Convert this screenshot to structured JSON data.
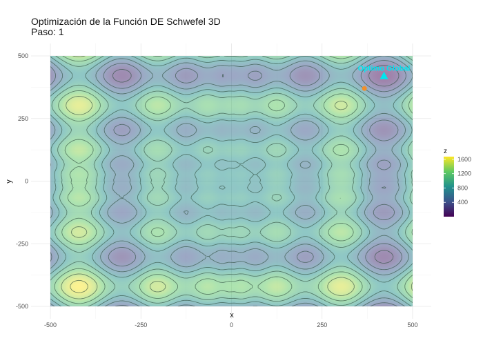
{
  "chart_data": {
    "type": "heatmap",
    "title": "Optimización de la Función DE Schwefel 3D",
    "subtitle": "Paso: 1",
    "xlabel": "x",
    "ylabel": "y",
    "xlim": [
      -500,
      500
    ],
    "ylim": [
      -500,
      500
    ],
    "x_ticks": [
      "-500",
      "-250",
      "0",
      "250",
      "500"
    ],
    "y_ticks": [
      "500",
      "250",
      "0",
      "-250",
      "-500"
    ],
    "grid": true,
    "legend": {
      "title": "z",
      "placement": "right",
      "ticks": [
        "1600",
        "1200",
        "800",
        "400"
      ],
      "colormap": "viridis",
      "range": [
        0,
        1676
      ]
    },
    "points": [
      {
        "name": "Optimo Global",
        "x": 420.97,
        "y": 420.97,
        "marker": "triangle",
        "color": "#00e5ee"
      },
      {
        "x": 367,
        "y": 370,
        "marker": "circle",
        "color": "#f28e2b"
      }
    ],
    "annotations": [
      {
        "text": "Optimo Global",
        "x": 420.97,
        "y": 420.97,
        "color": "#00e5ee"
      }
    ]
  }
}
